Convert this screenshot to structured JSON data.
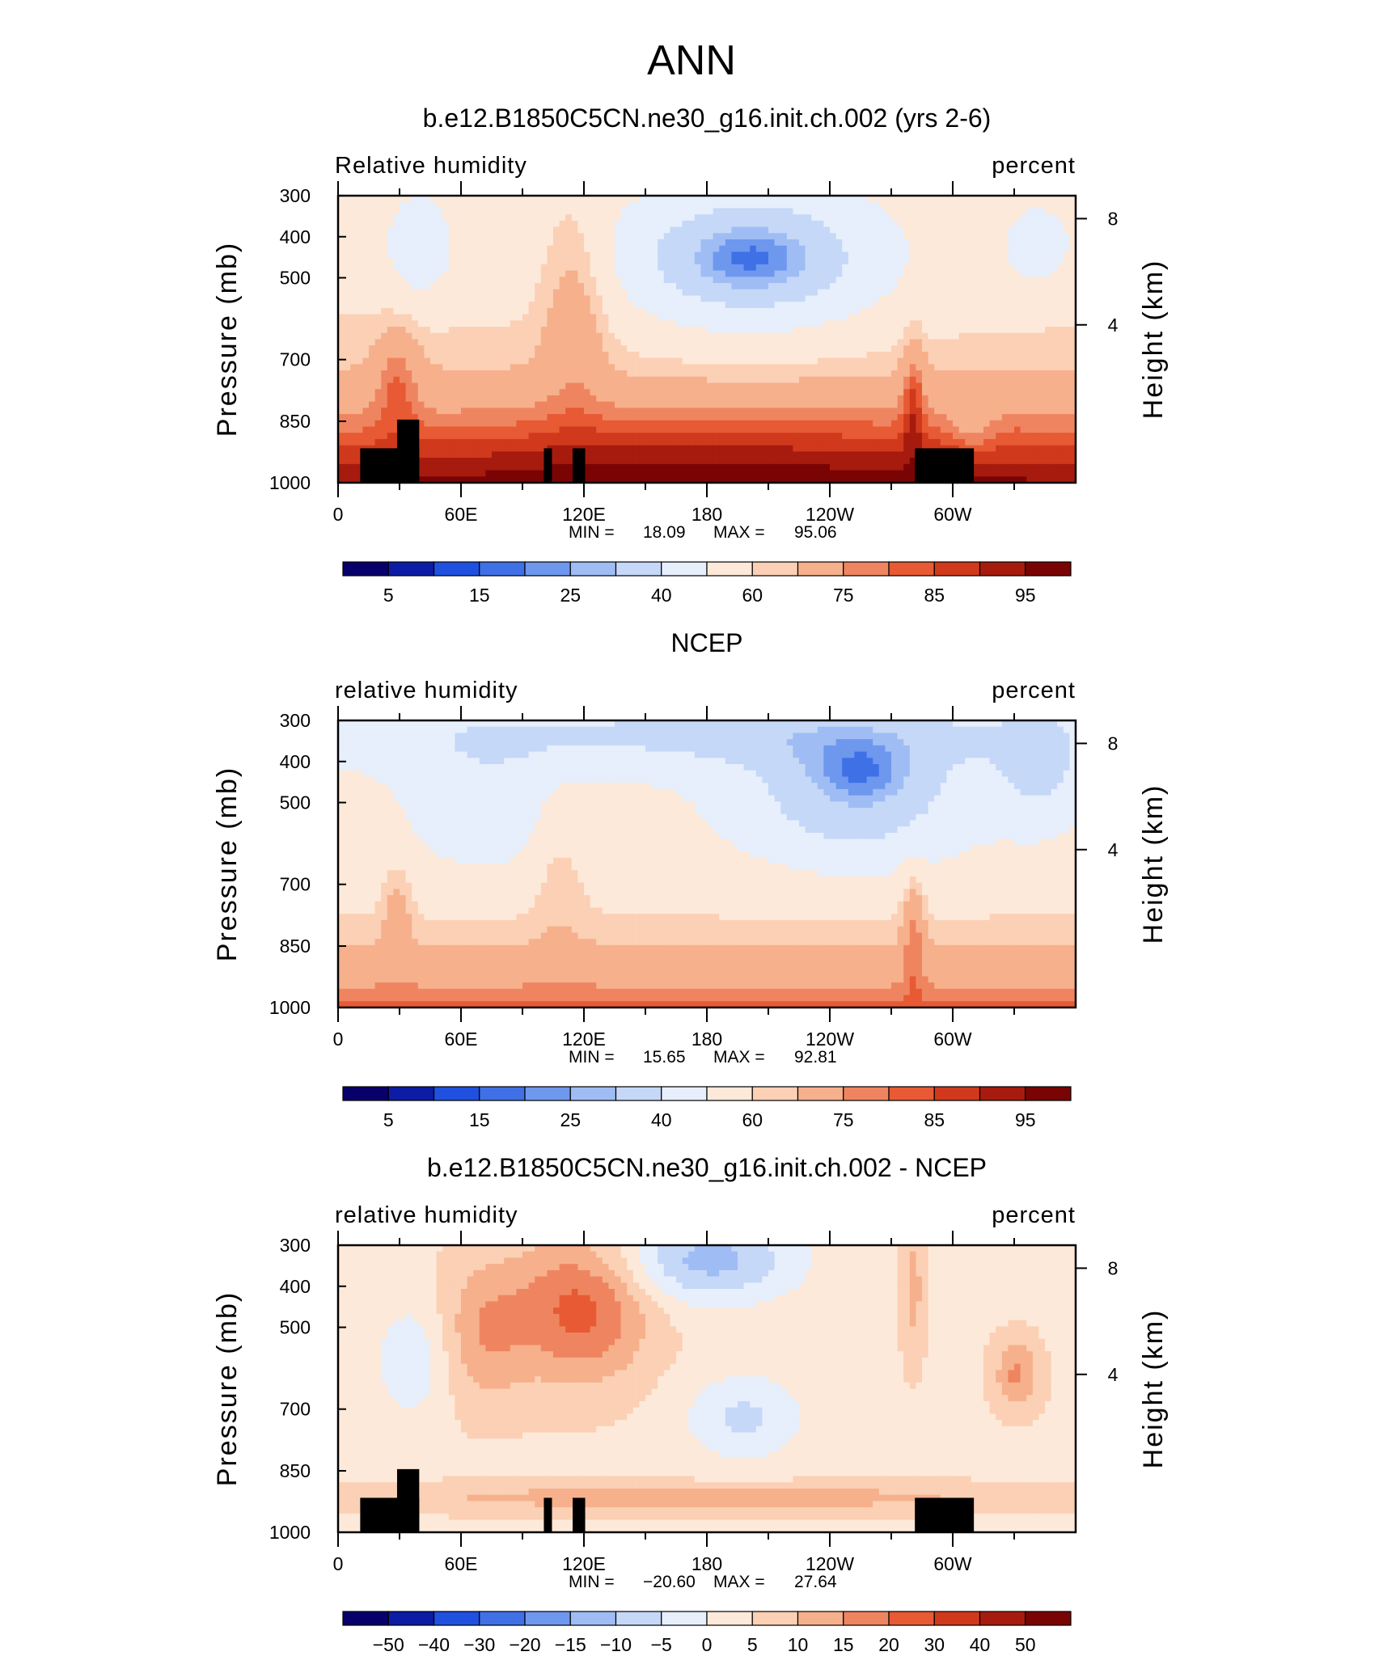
{
  "figure": {
    "title": "ANN"
  },
  "panels": [
    {
      "id": "model",
      "title": "b.e12.B1850C5CN.ne30_g16.init.ch.002 (yrs 2-6)",
      "left_label": "Relative humidity",
      "right_label": "percent",
      "y_axis_label": "Pressure (mb)",
      "y2_axis_label": "Height (km)",
      "stats": {
        "min_label": "MIN =",
        "min": "18.09",
        "max_label": "MAX =",
        "max": "95.06"
      },
      "topography_mask": true
    },
    {
      "id": "obs",
      "title": "NCEP",
      "left_label": "relative humidity",
      "right_label": "percent",
      "y_axis_label": "Pressure (mb)",
      "y2_axis_label": "Height (km)",
      "stats": {
        "min_label": "MIN =",
        "min": "15.65",
        "max_label": "MAX =",
        "max": "92.81"
      },
      "topography_mask": false
    },
    {
      "id": "diff",
      "title": "b.e12.B1850C5CN.ne30_g16.init.ch.002 - NCEP",
      "left_label": "relative humidity",
      "right_label": "percent",
      "y_axis_label": "Pressure (mb)",
      "y2_axis_label": "Height (km)",
      "stats": {
        "min_label": "MIN =",
        "min": "−20.60",
        "max_label": "MAX =",
        "max": "27.64"
      },
      "topography_mask": true
    }
  ],
  "chart_data": [
    {
      "type": "heatmap",
      "title": "b.e12.B1850C5CN.ne30_g16.init.ch.002 (yrs 2-6)",
      "subtitle_left": "Relative humidity",
      "subtitle_right": "percent",
      "ylabel": "Pressure (mb)",
      "y2label": "Height (km)",
      "x_ticks": [
        "0",
        "60E",
        "120E",
        "180",
        "120W",
        "60W"
      ],
      "y_ticks": [
        "300",
        "400",
        "500",
        "700",
        "850",
        "1000"
      ],
      "y2_ticks": [
        "8",
        "4"
      ],
      "y_scale": "log",
      "ylim": [
        1000,
        300
      ],
      "colorbar_labels": [
        "5",
        "15",
        "25",
        "40",
        "60",
        "75",
        "85",
        "95"
      ],
      "min": 18.09,
      "max": 95.06,
      "grid": false
    },
    {
      "type": "heatmap",
      "title": "NCEP",
      "subtitle_left": "relative humidity",
      "subtitle_right": "percent",
      "ylabel": "Pressure (mb)",
      "y2label": "Height (km)",
      "x_ticks": [
        "0",
        "60E",
        "120E",
        "180",
        "120W",
        "60W"
      ],
      "y_ticks": [
        "300",
        "400",
        "500",
        "700",
        "850",
        "1000"
      ],
      "y2_ticks": [
        "8",
        "4"
      ],
      "y_scale": "log",
      "ylim": [
        1000,
        300
      ],
      "colorbar_labels": [
        "5",
        "15",
        "25",
        "40",
        "60",
        "75",
        "85",
        "95"
      ],
      "min": 15.65,
      "max": 92.81,
      "grid": false
    },
    {
      "type": "heatmap",
      "title": "b.e12.B1850C5CN.ne30_g16.init.ch.002 - NCEP",
      "subtitle_left": "relative humidity",
      "subtitle_right": "percent",
      "ylabel": "Pressure (mb)",
      "y2label": "Height (km)",
      "x_ticks": [
        "0",
        "60E",
        "120E",
        "180",
        "120W",
        "60W"
      ],
      "y_ticks": [
        "300",
        "400",
        "500",
        "700",
        "850",
        "1000"
      ],
      "y2_ticks": [
        "8",
        "4"
      ],
      "y_scale": "log",
      "ylim": [
        1000,
        300
      ],
      "colorbar_labels": [
        "−50",
        "−40",
        "−30",
        "−20",
        "−15",
        "−10",
        "−5",
        "0",
        "5",
        "10",
        "15",
        "20",
        "30",
        "40",
        "50"
      ],
      "min": -20.6,
      "max": 27.64,
      "grid": false
    }
  ],
  "colors": {
    "bar_fill": [
      "#08006a",
      "#0d1ca4",
      "#1f50e0",
      "#3f70e6",
      "#6e98ee",
      "#9fbdf4",
      "#c6d8f8",
      "#e6effb",
      "#fde9d9",
      "#fbd0b5",
      "#f6b08c",
      "#ef8560",
      "#e75a34",
      "#d0391c",
      "#a61b0e",
      "#7a0404"
    ],
    "mask": "#000000"
  }
}
